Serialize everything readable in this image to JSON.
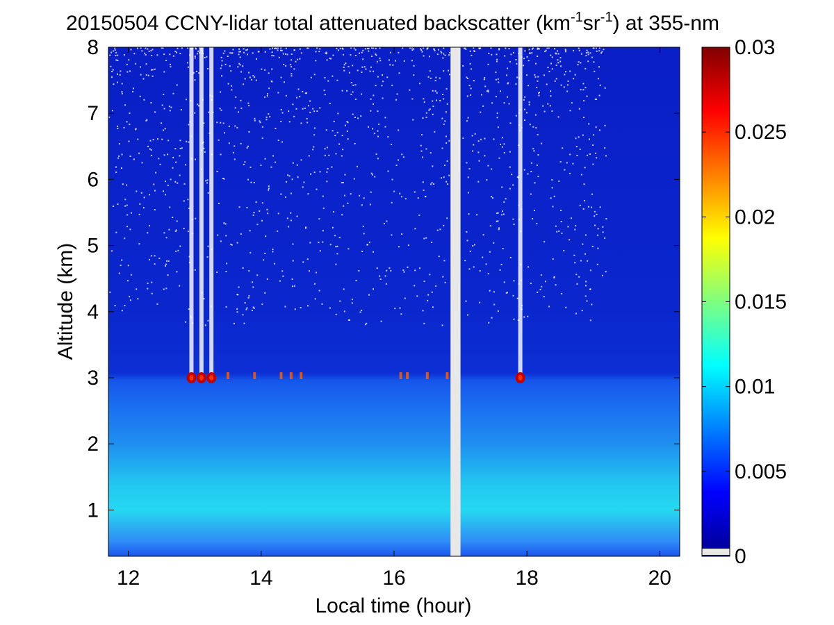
{
  "chart_data": {
    "type": "heatmap",
    "title": {
      "prefix": "20150504 CCNY-lidar total attenuated backscatter (km",
      "sup1": "-1",
      "mid": "sr",
      "sup2": "-1",
      "suffix": ") at 355-nm"
    },
    "xlabel": "Local time (hour)",
    "ylabel": "Altitude (km)",
    "xlim": [
      11.7,
      20.3
    ],
    "ylim": [
      0.3,
      8
    ],
    "xticks": [
      12,
      14,
      16,
      18,
      20
    ],
    "yticks": [
      1,
      2,
      3,
      4,
      5,
      6,
      7,
      8
    ],
    "colorbar": {
      "colormap": "jet",
      "range": [
        0,
        0.03
      ],
      "ticks": [
        "0",
        "0.005",
        "0.01",
        "0.015",
        "0.02",
        "0.025",
        "0.03"
      ],
      "tick_values": [
        0,
        0.005,
        0.01,
        0.015,
        0.02,
        0.025,
        0.03
      ]
    },
    "features": {
      "background_value": 0.002,
      "boundary_layer_top_km": 3.0,
      "near_surface_value": 0.01,
      "data_gap_hours": [
        16.85,
        17.0
      ],
      "cloud_times_hours": [
        12.95,
        13.1,
        13.25,
        17.9
      ],
      "cloud_base_km": 3.0,
      "cloud_base_value": 0.03
    }
  }
}
